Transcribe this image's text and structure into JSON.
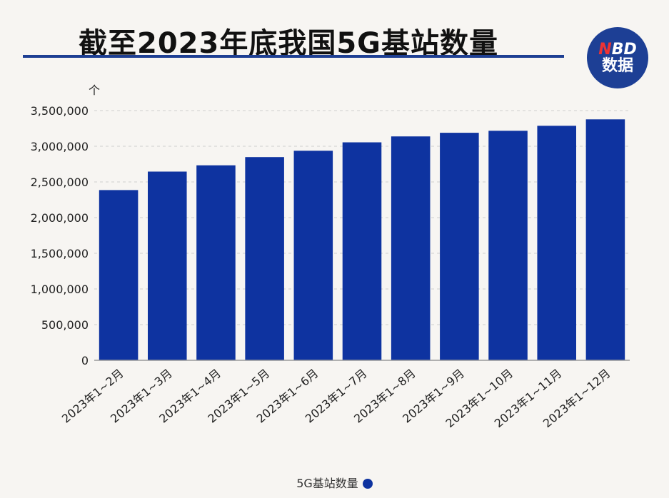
{
  "header": {
    "title": "截至2023年底我国5G基站数量"
  },
  "logo": {
    "line1_n": "N",
    "line1_rest": "BD",
    "line2": "数据"
  },
  "legend": {
    "label": "5G基站数量"
  },
  "colors": {
    "bar": "#0e33a0",
    "title_rule": "#1e3f93",
    "logo_bg": "#1d3f95"
  },
  "chart_data": {
    "type": "bar",
    "title": "截至2023年底我国5G基站数量",
    "ylabel": "个",
    "ylim": [
      0,
      3500000
    ],
    "yticks": [
      0,
      500000,
      1000000,
      1500000,
      2000000,
      2500000,
      3000000,
      3500000
    ],
    "ytick_labels": [
      "0",
      "500,000",
      "1,000,000",
      "1,500,000",
      "2,000,000",
      "2,500,000",
      "3,000,000",
      "3,500,000"
    ],
    "grid": true,
    "legend_position": "bottom",
    "categories": [
      "2023年1~2月",
      "2023年1~3月",
      "2023年1~4月",
      "2023年1~5月",
      "2023年1~6月",
      "2023年1~7月",
      "2023年1~8月",
      "2023年1~9月",
      "2023年1~10月",
      "2023年1~11月",
      "2023年1~12月"
    ],
    "series": [
      {
        "name": "5G基站数量",
        "values": [
          2386000,
          2645000,
          2733000,
          2848000,
          2937000,
          3055000,
          3138000,
          3189000,
          3217000,
          3287000,
          3377000
        ]
      }
    ]
  }
}
